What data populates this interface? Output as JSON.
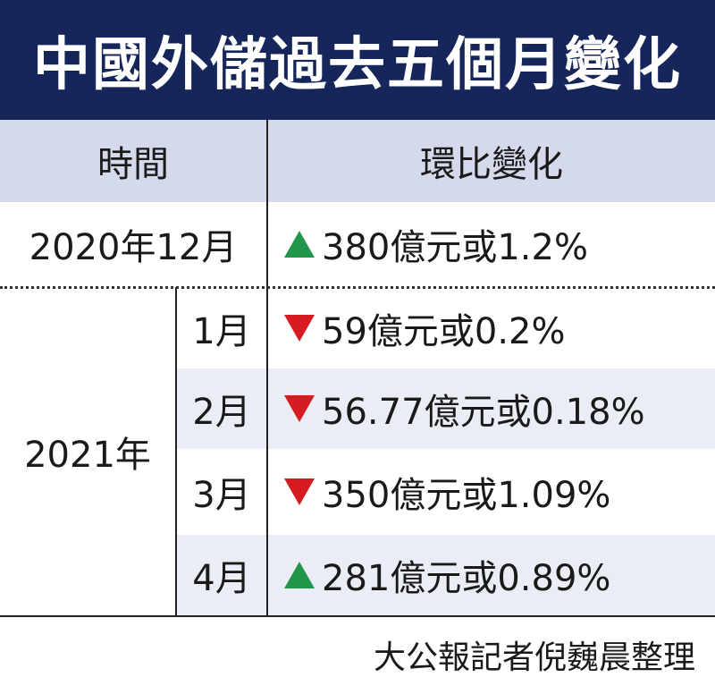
{
  "title": "中國外儲過去五個月變化",
  "headers": {
    "time": "時間",
    "change": "環比變化"
  },
  "rows": [
    {
      "year": "2020年12月",
      "month": "",
      "direction": "up",
      "change": "380億元或1.2%"
    },
    {
      "year": "2021年",
      "month": "1月",
      "direction": "down",
      "change": "59億元或0.2%"
    },
    {
      "year": "2021年",
      "month": "2月",
      "direction": "down",
      "change": "56.77億元或0.18%"
    },
    {
      "year": "2021年",
      "month": "3月",
      "direction": "down",
      "change": "350億元或1.09%"
    },
    {
      "year": "2021年",
      "month": "4月",
      "direction": "up",
      "change": "281億元或0.89%"
    }
  ],
  "colors": {
    "title_bg": "#16265a",
    "header_bg": "#d4d9ec",
    "shade_bg": "#eaedf5",
    "up": "#21954a",
    "down": "#d61b21"
  },
  "icons": {
    "up": "triangle-up-icon",
    "down": "triangle-down-icon"
  },
  "credit": "大公報記者倪巍晨整理"
}
